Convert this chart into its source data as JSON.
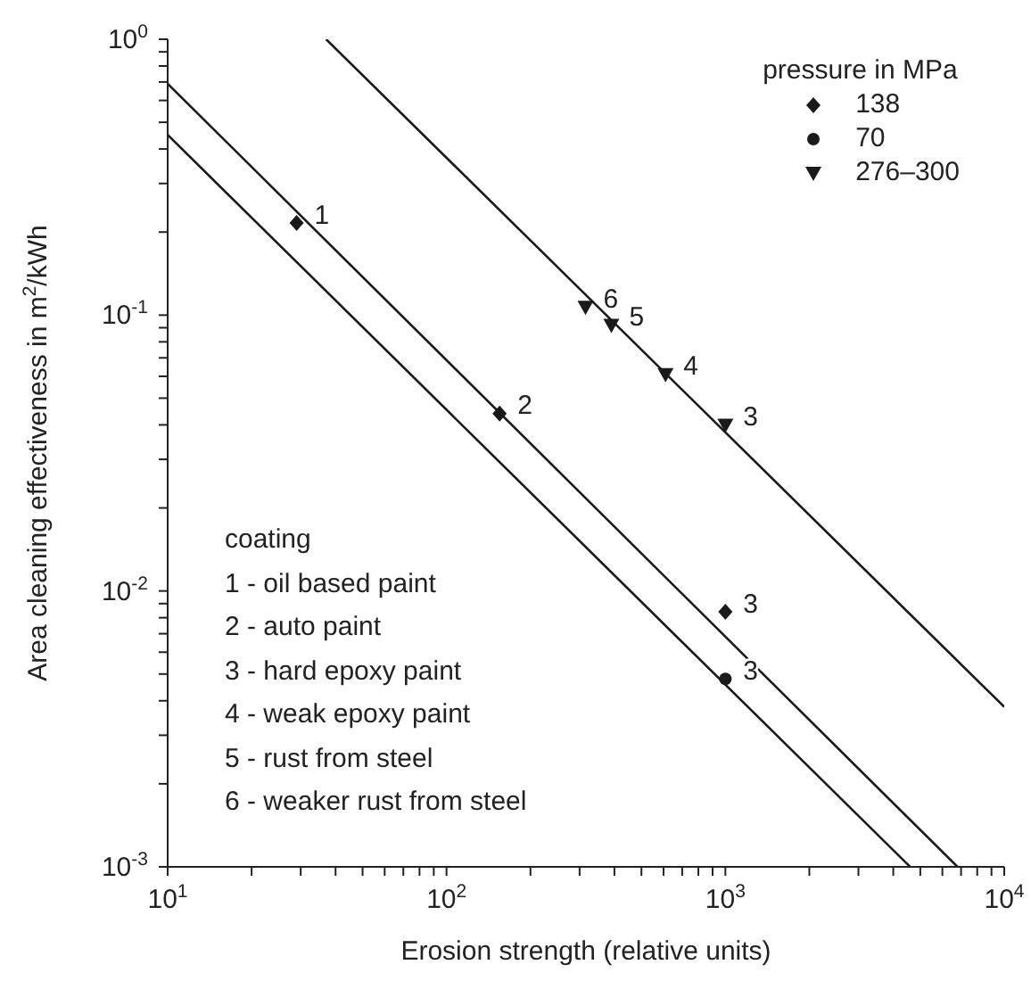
{
  "chart_data": {
    "type": "scatter",
    "xlabel": "Erosion strength (relative units)",
    "ylabel": "Area cleaning effectiveness in m$^{2}$/kWh",
    "log": "xy",
    "legend": "top right",
    "legend_title": "pressure in MPa",
    "xlim": [
      10,
      10000
    ],
    "ylim": [
      0.001,
      1
    ],
    "xticks": [
      {
        "value": 10,
        "label": "10$^{1}$"
      },
      {
        "value": 20,
        "label": null
      },
      {
        "value": 30,
        "label": null
      },
      {
        "value": 40,
        "label": null
      },
      {
        "value": 50,
        "label": null
      },
      {
        "value": 60,
        "label": null
      },
      {
        "value": 70,
        "label": null
      },
      {
        "value": 80,
        "label": null
      },
      {
        "value": 90,
        "label": null
      },
      {
        "value": 100,
        "label": "10$^{2}$"
      },
      {
        "value": 200,
        "label": null
      },
      {
        "value": 300,
        "label": null
      },
      {
        "value": 400,
        "label": null
      },
      {
        "value": 500,
        "label": null
      },
      {
        "value": 600,
        "label": null
      },
      {
        "value": 700,
        "label": null
      },
      {
        "value": 800,
        "label": null
      },
      {
        "value": 900,
        "label": null
      },
      {
        "value": 1000,
        "label": "10$^{3}$"
      },
      {
        "value": 2000,
        "label": null
      },
      {
        "value": 3000,
        "label": null
      },
      {
        "value": 4000,
        "label": null
      },
      {
        "value": 5000,
        "label": null
      },
      {
        "value": 6000,
        "label": null
      },
      {
        "value": 7000,
        "label": null
      },
      {
        "value": 8000,
        "label": null
      },
      {
        "value": 9000,
        "label": null
      },
      {
        "value": 10000,
        "label": "10$^{4}$"
      }
    ],
    "yticks": [
      {
        "value": 0.001,
        "label": "10$^{-3}$"
      },
      {
        "value": 0.002,
        "label": null
      },
      {
        "value": 0.003,
        "label": null
      },
      {
        "value": 0.004,
        "label": null
      },
      {
        "value": 0.005,
        "label": null
      },
      {
        "value": 0.006,
        "label": null
      },
      {
        "value": 0.007,
        "label": null
      },
      {
        "value": 0.008,
        "label": null
      },
      {
        "value": 0.009,
        "label": null
      },
      {
        "value": 0.01,
        "label": "10$^{-2}$"
      },
      {
        "value": 0.02,
        "label": null
      },
      {
        "value": 0.03,
        "label": null
      },
      {
        "value": 0.04,
        "label": null
      },
      {
        "value": 0.05,
        "label": null
      },
      {
        "value": 0.06,
        "label": null
      },
      {
        "value": 0.07,
        "label": null
      },
      {
        "value": 0.08,
        "label": null
      },
      {
        "value": 0.09,
        "label": null
      },
      {
        "value": 0.1,
        "label": "10$^{-1}$"
      },
      {
        "value": 0.2,
        "label": null
      },
      {
        "value": 0.3,
        "label": null
      },
      {
        "value": 0.4,
        "label": null
      },
      {
        "value": 0.5,
        "label": null
      },
      {
        "value": 0.6,
        "label": null
      },
      {
        "value": 0.7,
        "label": null
      },
      {
        "value": 0.8,
        "label": null
      },
      {
        "value": 0.9,
        "label": null
      },
      {
        "value": 1,
        "label": "10$^{0}$"
      }
    ],
    "series": [
      {
        "type": "line",
        "color": "#1a1a1a",
        "marker": "none",
        "line_style": "solid",
        "x": [
          37,
          10000
        ],
        "values": [
          1,
          0.0038
        ]
      },
      {
        "type": "line",
        "color": "#1a1a1a",
        "marker": "none",
        "line_style": "solid",
        "x": [
          10,
          6800
        ],
        "values": [
          0.69,
          0.001
        ]
      },
      {
        "type": "line",
        "color": "#1a1a1a",
        "marker": "none",
        "line_style": "solid",
        "x": [
          10,
          4600
        ],
        "values": [
          0.45,
          0.001
        ]
      },
      {
        "type": "scatter",
        "name": "138",
        "color": "#1a1a1a",
        "marker": "diamond",
        "x": [
          29,
          155,
          1000
        ],
        "values": [
          0.216,
          0.044,
          0.0084
        ]
      },
      {
        "type": "scatter",
        "name": "70",
        "color": "#1a1a1a",
        "marker": "circle",
        "x": [
          1000
        ],
        "values": [
          0.0048
        ]
      },
      {
        "type": "scatter",
        "name": "276–300",
        "color": "#1a1a1a",
        "marker": "triangle",
        "x": [
          315,
          390,
          610,
          1000
        ],
        "values": [
          0.107,
          0.092,
          0.061,
          0.04
        ]
      }
    ],
    "annotations": [
      {
        "text": "1",
        "x": 29,
        "y": 0.216
      },
      {
        "text": "2",
        "x": 155,
        "y": 0.044
      },
      {
        "text": "3",
        "x": 1000,
        "y": 0.0084
      },
      {
        "text": "3",
        "x": 1000,
        "y": 0.0048
      },
      {
        "text": "6",
        "x": 315,
        "y": 0.107
      },
      {
        "text": "5",
        "x": 390,
        "y": 0.092
      },
      {
        "text": "4",
        "x": 610,
        "y": 0.061
      },
      {
        "text": "3",
        "x": 1000,
        "y": 0.04
      },
      "coating",
      "1 - oil based paint",
      "2 - auto paint",
      "3 - hard epoxy paint",
      "4 - weak epoxy paint",
      "5 - rust from steel",
      "6 - weaker rust from steel"
    ]
  }
}
